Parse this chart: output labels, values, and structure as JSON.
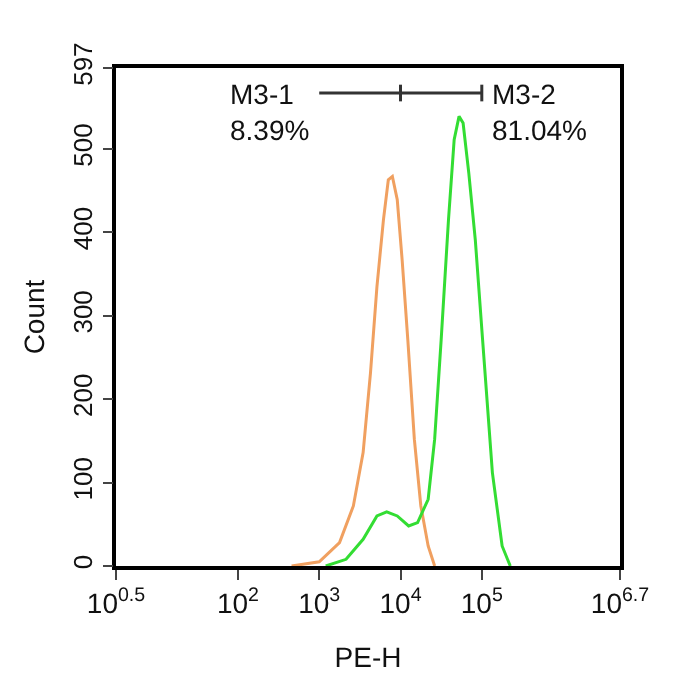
{
  "chart_data": {
    "type": "line",
    "xlabel": "PE-H",
    "ylabel": "Count",
    "log": "x",
    "marker": "none",
    "line_style": "solid",
    "xlim": [
      3.162,
      5012000
    ],
    "ylim": [
      0,
      597
    ],
    "xticks": [
      {
        "value": 3.162,
        "label": "10$^{0.5}$"
      },
      {
        "value": 100,
        "label": "10$^{2}$"
      },
      {
        "value": 1000,
        "label": "10$^{3}$"
      },
      {
        "value": 10000,
        "label": "10$^{4}$"
      },
      {
        "value": 100000,
        "label": "10$^{5}$"
      },
      {
        "value": 5012000,
        "label": "10$^{6.7}$"
      }
    ],
    "yticks": [
      0,
      100,
      200,
      300,
      400,
      500,
      597
    ],
    "series": [
      {
        "color": "#f0a060",
        "x": [
          457,
          1000,
          1778,
          2630,
          3467,
          4266,
          5129,
          6166,
          7079,
          7943,
          9120,
          10470,
          12300,
          14790,
          17780,
          21880,
          26300
        ],
        "values": [
          0,
          5,
          28,
          72,
          136,
          231,
          335,
          415,
          463,
          467,
          439,
          367,
          271,
          152,
          72,
          24,
          0
        ]
      },
      {
        "color": "#33dd33",
        "x": [
          1202,
          2138,
          3467,
          5129,
          6761,
          9120,
          12590,
          16220,
          21880,
          26300,
          31620,
          38900,
          45710,
          52480,
          58880,
          69180,
          83180,
          102300,
          134900,
          177800,
          223900
        ],
        "values": [
          0,
          8,
          32,
          60,
          65,
          60,
          48,
          52,
          80,
          152,
          271,
          415,
          511,
          539,
          531,
          471,
          391,
          271,
          112,
          24,
          0
        ]
      },
      {
        "color": "#333333",
        "x": [
          1000,
          10000,
          100000
        ],
        "values": [
          567,
          567,
          567
        ],
        "errors": [
          null,
          10,
          10
        ]
      }
    ],
    "annotations": [
      {
        "text": "M3-1\n8.39%",
        "x": 1000,
        "y": 567
      },
      {
        "text": "M3-2\n81.04%",
        "x": 100000,
        "y": 567
      }
    ]
  }
}
